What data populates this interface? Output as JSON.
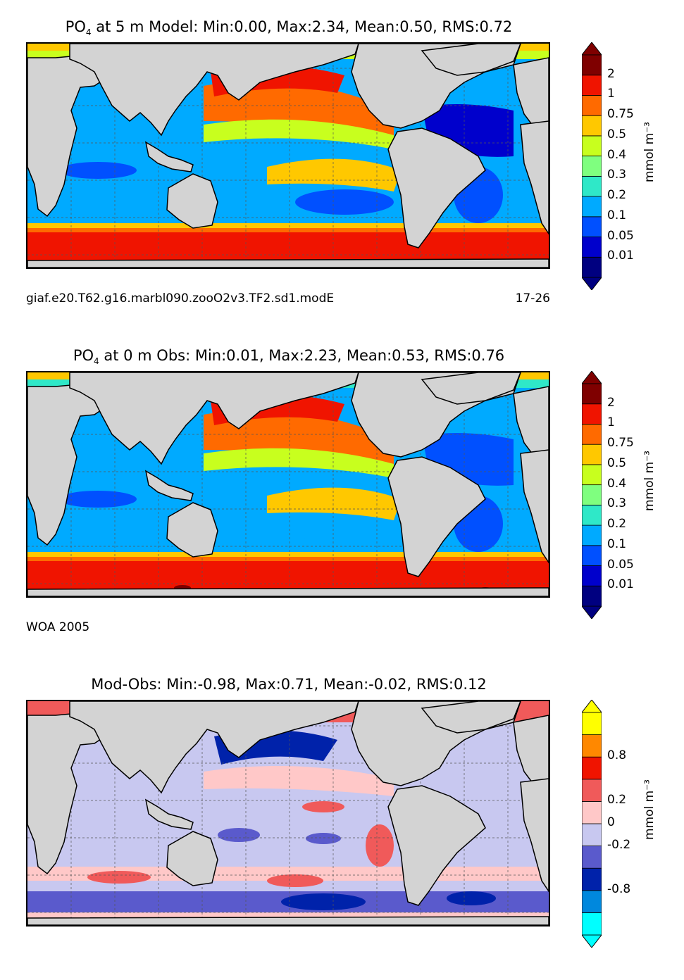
{
  "colors": {
    "land": "#d3d3d3",
    "concentration_scale": [
      "#000080",
      "#0000cc",
      "#0050ff",
      "#00aaff",
      "#2fe8c8",
      "#7fff7f",
      "#c8ff1e",
      "#ffc800",
      "#ff6a00",
      "#f01400",
      "#7f0000"
    ],
    "difference_scale": [
      "#00ffff",
      "#0088dd",
      "#0022aa",
      "#5a5acc",
      "#c8c8f0",
      "#ffc8c8",
      "#f05a5a",
      "#f01400",
      "#ff8800",
      "#ffff00"
    ]
  },
  "panels": [
    {
      "title_prefix": "PO",
      "title_sub": "4",
      "title_rest": " at 5 m Model: Min:0.00, Max:2.34, Mean:0.50, RMS:0.72",
      "caption_left": "giaf.e20.T62.g16.marbl090.zooO2v3.TF2.sd1.modE",
      "caption_right": "17-26",
      "colorbar": {
        "ticks": [
          "2",
          "1",
          "0.75",
          "0.5",
          "0.4",
          "0.3",
          "0.2",
          "0.1",
          "0.05",
          "0.01"
        ],
        "units": "mmol m⁻³"
      }
    },
    {
      "title_prefix": "PO",
      "title_sub": "4",
      "title_rest": " at 0 m Obs: Min:0.01, Max:2.23, Mean:0.53, RMS:0.76",
      "caption_left": "WOA 2005",
      "caption_right": "",
      "colorbar": {
        "ticks": [
          "2",
          "1",
          "0.75",
          "0.5",
          "0.4",
          "0.3",
          "0.2",
          "0.1",
          "0.05",
          "0.01"
        ],
        "units": "mmol m⁻³"
      }
    },
    {
      "title_full": "Mod-Obs: Min:-0.98, Max:0.71, Mean:-0.02, RMS:0.12",
      "caption_left": "",
      "caption_right": "",
      "colorbar": {
        "ticks": [
          "0.8",
          "0.2",
          "0",
          "-0.2",
          "-0.8"
        ],
        "units": "mmol m⁻³"
      }
    }
  ]
}
